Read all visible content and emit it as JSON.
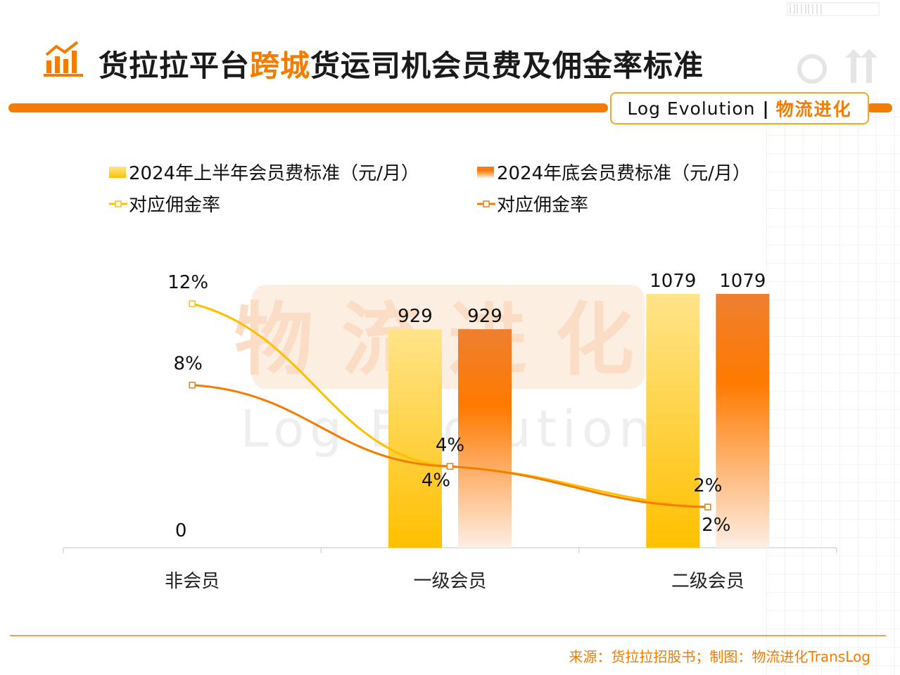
{
  "title": {
    "part1": "货拉拉平台",
    "highlight": "跨城",
    "part2": "货运司机会员费及佣金率标准"
  },
  "brand": {
    "en": "Log Evolution",
    "separator": "|",
    "cn": "物流进化"
  },
  "watermark": {
    "cn": "物流进化",
    "en": "Log Evolution"
  },
  "source": "来源：货拉拉招股书；制图：物流进化TransLog",
  "colors": {
    "accent": "#f57c00",
    "series_bar1_light": "#ffe48a",
    "series_bar1_dark": "#ffc000",
    "series_bar2_dark": "#f57c00",
    "series_line1": "#ffc000",
    "series_line2": "#f57c00"
  },
  "chart_data": {
    "type": "bar",
    "categories": [
      "非会员",
      "一级会员",
      "二级会员"
    ],
    "series": [
      {
        "name": "2024年上半年会员费标准（元/月）",
        "type": "bar",
        "values": [
          0,
          929,
          1079
        ],
        "labels": [
          "0",
          "929",
          "1079"
        ]
      },
      {
        "name": "2024年底会员费标准（元/月）",
        "type": "bar",
        "values": [
          0,
          929,
          1079
        ],
        "labels": [
          "",
          "929",
          "1079"
        ]
      },
      {
        "name": "对应佣金率",
        "type": "line",
        "values": [
          12,
          4,
          2
        ],
        "labels": [
          "12%",
          "4%",
          "2%"
        ]
      },
      {
        "name": "对应佣金率",
        "type": "line",
        "values": [
          8,
          4,
          2
        ],
        "labels": [
          "8%",
          "4%",
          "2%"
        ]
      }
    ],
    "bar_axis_max": 1079,
    "line_axis_max": 12,
    "legend": "top",
    "grid": false
  }
}
